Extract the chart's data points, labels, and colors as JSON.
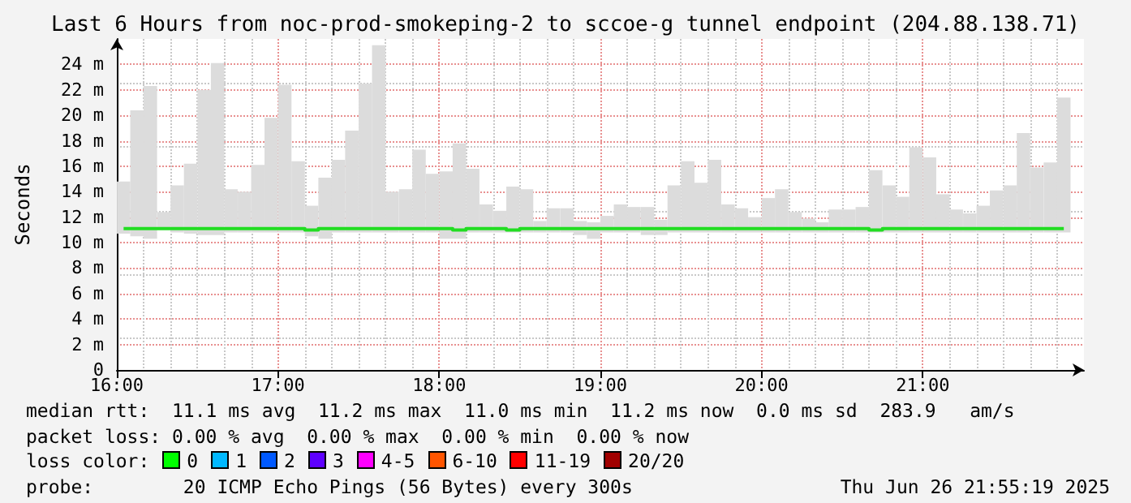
{
  "chart_data": {
    "type": "bar",
    "title": "Last 6 Hours from noc-prod-smokeping-2 to sccoe-g tunnel endpoint (204.88.138.71)",
    "ylabel": "Seconds",
    "x": [
      16.042,
      16.125,
      16.208,
      16.292,
      16.375,
      16.458,
      16.542,
      16.625,
      16.708,
      16.792,
      16.875,
      16.958,
      17.042,
      17.125,
      17.208,
      17.292,
      17.375,
      17.458,
      17.542,
      17.625,
      17.708,
      17.792,
      17.875,
      17.958,
      18.042,
      18.125,
      18.208,
      18.292,
      18.375,
      18.458,
      18.542,
      18.625,
      18.708,
      18.792,
      18.875,
      18.958,
      19.042,
      19.125,
      19.208,
      19.292,
      19.375,
      19.458,
      19.542,
      19.625,
      19.708,
      19.792,
      19.875,
      19.958,
      20.042,
      20.125,
      20.208,
      20.292,
      20.375,
      20.458,
      20.542,
      20.625,
      20.708,
      20.792,
      20.875,
      20.958,
      21.042,
      21.125,
      21.208,
      21.292,
      21.375,
      21.458,
      21.542,
      21.625,
      21.708,
      21.792,
      21.875
    ],
    "series": [
      {
        "color": "#dcdcdc",
        "base": [
          10.7,
          10.5,
          10.3,
          11.0,
          10.8,
          10.7,
          10.6,
          10.6,
          10.8,
          10.8,
          10.8,
          10.8,
          10.8,
          10.8,
          10.5,
          10.3,
          10.8,
          10.8,
          10.8,
          10.8,
          10.8,
          10.8,
          10.8,
          10.8,
          10.3,
          10.3,
          10.8,
          10.8,
          10.8,
          10.8,
          10.8,
          10.8,
          10.8,
          10.8,
          10.6,
          10.3,
          10.8,
          10.8,
          10.8,
          10.6,
          10.6,
          10.8,
          10.8,
          10.8,
          10.8,
          10.8,
          10.8,
          10.8,
          10.8,
          10.8,
          10.8,
          10.8,
          10.8,
          10.8,
          10.8,
          10.8,
          10.8,
          10.8,
          10.8,
          10.8,
          10.8,
          10.8,
          10.8,
          10.8,
          10.8,
          10.8,
          10.8,
          10.8,
          10.8,
          10.8,
          10.8
        ],
        "values": [
          4.1,
          9.9,
          12.0,
          1.4,
          3.7,
          5.5,
          11.4,
          13.5,
          3.4,
          3.2,
          5.3,
          9.0,
          11.6,
          5.6,
          2.4,
          4.8,
          5.7,
          8.0,
          11.7,
          14.7,
          3.2,
          3.4,
          6.5,
          4.6,
          5.3,
          7.5,
          5.0,
          2.2,
          1.7,
          3.6,
          3.4,
          0.9,
          1.9,
          1.9,
          1.1,
          1.3,
          1.3,
          2.2,
          2.0,
          2.2,
          1.2,
          3.7,
          5.6,
          3.9,
          5.7,
          2.2,
          1.9,
          1.2,
          2.7,
          3.4,
          1.6,
          1.1,
          0.8,
          1.8,
          1.8,
          2.0,
          4.9,
          3.7,
          2.8,
          6.7,
          5.9,
          3.0,
          1.8,
          1.5,
          2.1,
          3.3,
          3.7,
          7.8,
          5.1,
          5.5,
          10.6
        ]
      },
      {
        "type": "step",
        "color": "#22dd22",
        "values": [
          11.1,
          11.1,
          11.1,
          11.1,
          11.1,
          11.1,
          11.1,
          11.1,
          11.1,
          11.1,
          11.1,
          11.1,
          11.1,
          11.1,
          11.0,
          11.1,
          11.1,
          11.1,
          11.1,
          11.1,
          11.1,
          11.1,
          11.1,
          11.1,
          11.1,
          11.0,
          11.1,
          11.1,
          11.1,
          11.0,
          11.1,
          11.1,
          11.1,
          11.1,
          11.1,
          11.1,
          11.1,
          11.1,
          11.1,
          11.1,
          11.1,
          11.1,
          11.1,
          11.1,
          11.1,
          11.1,
          11.1,
          11.1,
          11.1,
          11.1,
          11.1,
          11.1,
          11.1,
          11.1,
          11.1,
          11.1,
          11.0,
          11.1,
          11.1,
          11.1,
          11.1,
          11.1,
          11.1,
          11.1,
          11.1,
          11.1,
          11.1,
          11.1,
          11.1,
          11.1,
          11.1
        ]
      }
    ],
    "xlim": [
      16,
      22
    ],
    "xticks": [
      {
        "value": 16,
        "label": "16:00"
      },
      {
        "value": 17,
        "label": "17:00"
      },
      {
        "value": 18,
        "label": "18:00"
      },
      {
        "value": 19,
        "label": "19:00"
      },
      {
        "value": 20,
        "label": "20:00"
      },
      {
        "value": 21,
        "label": "21:00"
      }
    ],
    "ylim": [
      0,
      26
    ],
    "yticks": [
      0,
      {
        "value": 2,
        "label": "2 m"
      },
      {
        "value": 4,
        "label": "4 m"
      },
      {
        "value": 6,
        "label": "6 m"
      },
      {
        "value": 8,
        "label": "8 m"
      },
      {
        "value": 10,
        "label": "10 m"
      },
      {
        "value": 12,
        "label": "12 m"
      },
      {
        "value": 14,
        "label": "14 m"
      },
      {
        "value": 16,
        "label": "16 m"
      },
      {
        "value": 18,
        "label": "18 m"
      },
      {
        "value": 20,
        "label": "20 m"
      },
      {
        "value": 22,
        "label": "22 m"
      },
      {
        "value": 24,
        "label": "24 m"
      }
    ],
    "grid": true,
    "marker": "none",
    "annotations": [
      "median rtt:  11.1 ms avg  11.2 ms max  11.0 ms min  11.2 ms now  0.0 ms sd  283.9   am/s",
      "packet loss: 0.00 % avg  0.00 % max  0.00 % min  0.00 % now",
      "loss color:",
      "0",
      "1",
      "2",
      "3",
      "4-5",
      "6-10",
      "11-19",
      "20/20",
      "probe:        20 ICMP Echo Pings (56 Bytes) every 300s",
      "Thu Jun 26 21:55:19 2025"
    ]
  }
}
